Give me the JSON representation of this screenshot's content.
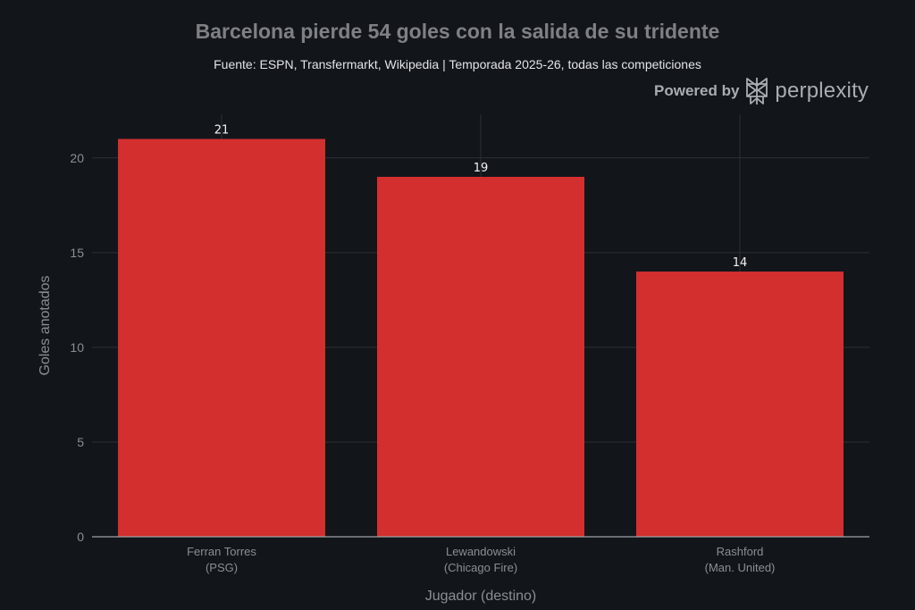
{
  "header": {
    "title": "Barcelona pierde 54 goles con la salida de su tridente",
    "subtitle": "Fuente: ESPN, Transfermarkt, Wikipedia | Temporada 2025-26, todas las competiciones"
  },
  "branding": {
    "label": "Powered by",
    "name": "perplexity",
    "icon": "perplexity-logo-icon"
  },
  "chart_data": {
    "type": "bar",
    "title": "Barcelona pierde 54 goles con la salida de su tridente",
    "subtitle": "Fuente: ESPN, Transfermarkt, Wikipedia | Temporada 2025-26, todas las competiciones",
    "xlabel": "Jugador (destino)",
    "ylabel": "Goles anotados",
    "categories": [
      [
        "Ferran Torres",
        "(PSG)"
      ],
      [
        "Lewandowski",
        "(Chicago Fire)"
      ],
      [
        "Rashford",
        "(Man. United)"
      ]
    ],
    "values": [
      21,
      19,
      14
    ],
    "data_labels": [
      "21",
      "19",
      "14"
    ],
    "ylim": [
      0,
      22.3
    ],
    "yticks": [
      0,
      5,
      10,
      15,
      20
    ],
    "grid": true,
    "legend": "none",
    "colors": {
      "bar": "#d32f2f",
      "background": "#12161b",
      "grid": "#2c3036",
      "axis": "#a0a3a7"
    }
  }
}
